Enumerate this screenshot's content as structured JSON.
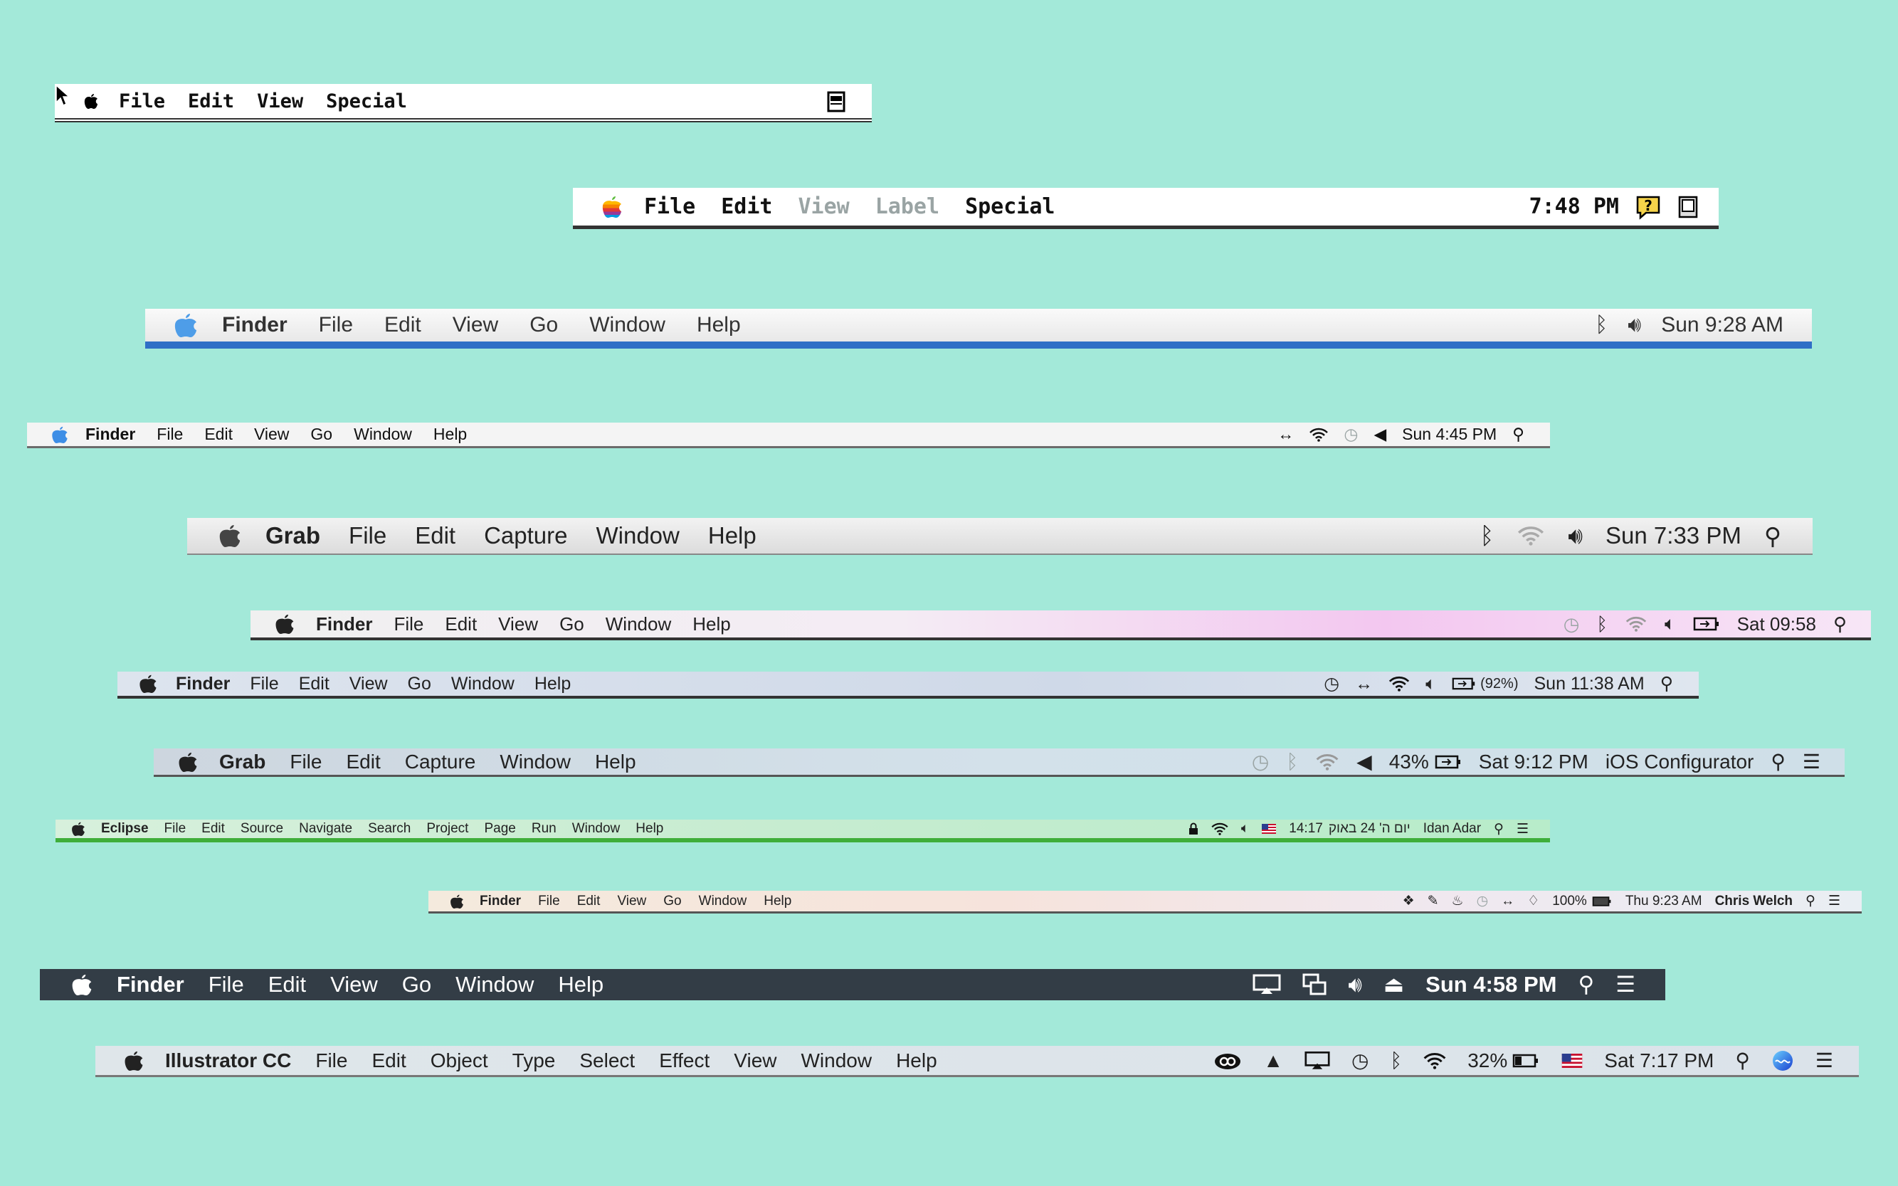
{
  "bar1": {
    "menus": [
      "File",
      "Edit",
      "View",
      "Special"
    ]
  },
  "bar2": {
    "menus": [
      "File",
      "Edit",
      "View",
      "Label",
      "Special"
    ],
    "clock": "7:48 PM"
  },
  "bar3": {
    "app": "Finder",
    "menus": [
      "File",
      "Edit",
      "View",
      "Go",
      "Window",
      "Help"
    ],
    "clock": "Sun 9:28 AM"
  },
  "bar4": {
    "app": "Finder",
    "menus": [
      "File",
      "Edit",
      "View",
      "Go",
      "Window",
      "Help"
    ],
    "clock": "Sun 4:45 PM"
  },
  "bar5": {
    "app": "Grab",
    "menus": [
      "File",
      "Edit",
      "Capture",
      "Window",
      "Help"
    ],
    "clock": "Sun 7:33 PM"
  },
  "bar6": {
    "app": "Finder",
    "menus": [
      "File",
      "Edit",
      "View",
      "Go",
      "Window",
      "Help"
    ],
    "clock": "Sat 09:58"
  },
  "bar7": {
    "app": "Finder",
    "menus": [
      "File",
      "Edit",
      "View",
      "Go",
      "Window",
      "Help"
    ],
    "battery": "(92%)",
    "clock": "Sun 11:38 AM"
  },
  "bar8": {
    "app": "Grab",
    "menus": [
      "File",
      "Edit",
      "Capture",
      "Window",
      "Help"
    ],
    "battery": "43%",
    "clock": "Sat 9:12 PM",
    "user": "iOS Configurator"
  },
  "bar9": {
    "app": "Eclipse",
    "menus": [
      "File",
      "Edit",
      "Source",
      "Navigate",
      "Search",
      "Project",
      "Page",
      "Run",
      "Window",
      "Help"
    ],
    "clock": "14:17",
    "date": "יום ה' 24 באוק",
    "user": "Idan Adar"
  },
  "bar10": {
    "app": "Finder",
    "menus": [
      "File",
      "Edit",
      "View",
      "Go",
      "Window",
      "Help"
    ],
    "battery": "100%",
    "clock": "Thu 9:23 AM",
    "user": "Chris Welch"
  },
  "bar11": {
    "app": "Finder",
    "menus": [
      "File",
      "Edit",
      "View",
      "Go",
      "Window",
      "Help"
    ],
    "clock": "Sun 4:58 PM"
  },
  "bar12": {
    "app": "Illustrator CC",
    "menus": [
      "File",
      "Edit",
      "Object",
      "Type",
      "Select",
      "Effect",
      "View",
      "Window",
      "Help"
    ],
    "battery": "32%",
    "clock": "Sat 7:17 PM"
  },
  "icons": [
    "apple-icon",
    "rainbow-apple-icon",
    "cursor-icon",
    "trash-icon",
    "help-icon",
    "bluetooth-icon",
    "volume-icon",
    "wifi-icon",
    "time-machine-icon",
    "search-icon",
    "battery-icon",
    "list-icon",
    "flag-icon",
    "lock-icon",
    "eject-icon",
    "airplay-icon",
    "dropbox-icon",
    "creative-cloud-icon",
    "google-drive-icon",
    "siri-icon"
  ],
  "colors": {
    "background": "#a3e9d9",
    "aqua_blue": "#2f6fc6",
    "eclipse_green": "#3fae3a",
    "dark_bar": "#333d46"
  }
}
